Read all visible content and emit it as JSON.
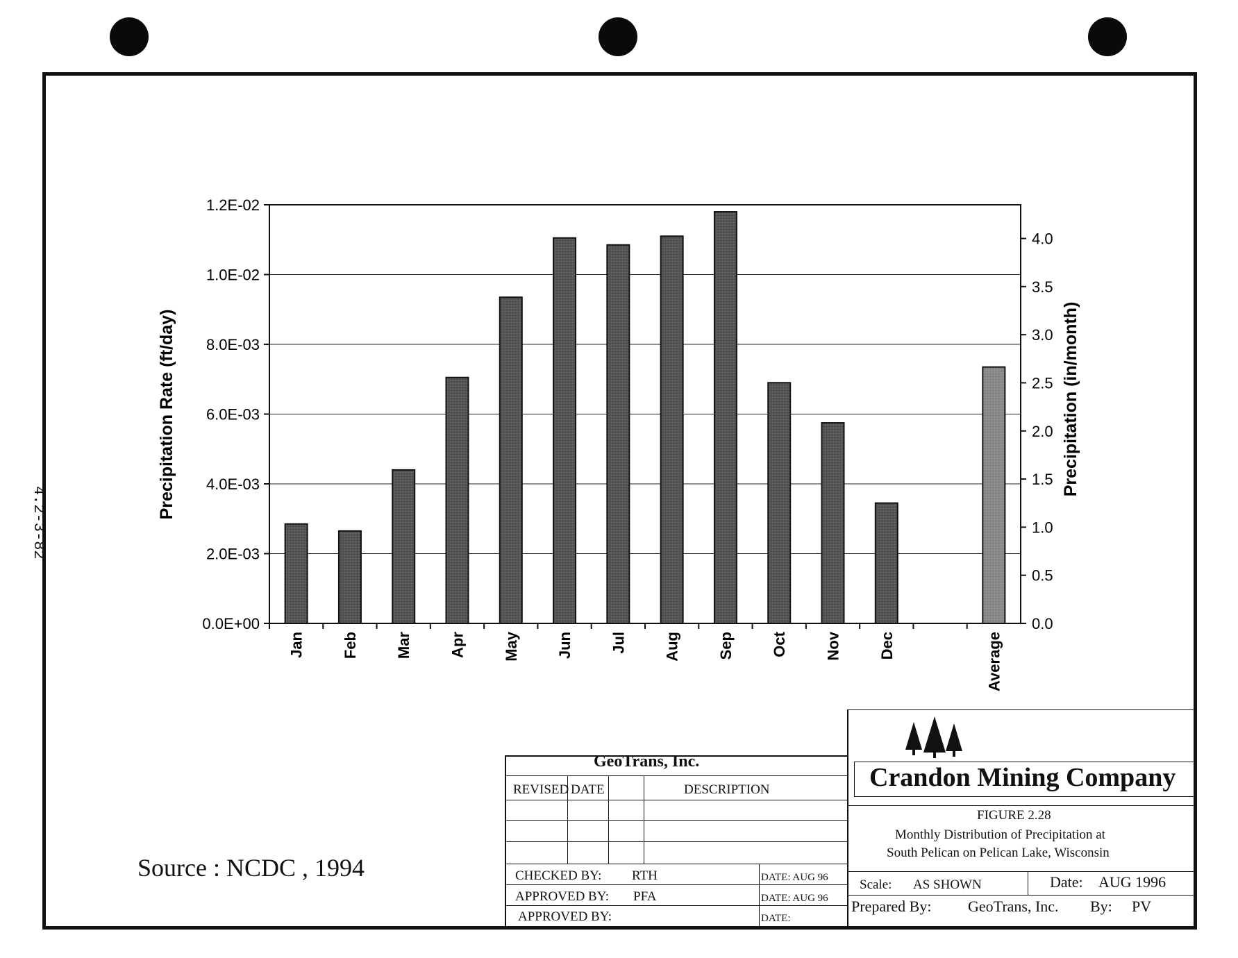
{
  "page_number": "4.2-3-82",
  "source_note": "Source : NCDC , 1994",
  "chart_data": {
    "type": "bar",
    "categories": [
      "Jan",
      "Feb",
      "Mar",
      "Apr",
      "May",
      "Jun",
      "Jul",
      "Aug",
      "Sep",
      "Oct",
      "Nov",
      "Dec",
      "",
      "Average"
    ],
    "values": [
      0.00285,
      0.00265,
      0.0044,
      0.00705,
      0.00935,
      0.01105,
      0.01085,
      0.0111,
      0.0118,
      0.0069,
      0.00575,
      0.00345,
      null,
      0.00735
    ],
    "ylabel": "Precipitation Rate (ft/day)",
    "y2label": "Precipitation (in/month)",
    "ylim": [
      0,
      0.012
    ],
    "yticks": [
      "0.0E+00",
      "2.0E-03",
      "4.0E-03",
      "6.0E-03",
      "8.0E-03",
      "1.0E-02",
      "1.2E-02"
    ],
    "y2ticks": [
      "0.0",
      "0.5",
      "1.0",
      "1.5",
      "2.0",
      "2.5",
      "3.0",
      "3.5",
      "4.0"
    ],
    "grid": true,
    "bar_color": "#555555",
    "average_bar_color": "#8a8a8a"
  },
  "title_block": {
    "company_left": "GeoTrans, Inc.",
    "col_revised": "REVISED",
    "col_date": "DATE",
    "col_description": "DESCRIPTION",
    "checked_by_label": "CHECKED BY:",
    "checked_by": "RTH",
    "checked_date": "DATE: AUG 96",
    "approved_by_label": "APPROVED BY:",
    "approved_by": "PFA",
    "approved_date": "DATE: AUG 96",
    "approved_by2_label": "APPROVED BY:",
    "approved_date2": "DATE:",
    "client": "Crandon Mining Company",
    "figure": "FIGURE 2.28",
    "figure_title_1": "Monthly Distribution of Precipitation at",
    "figure_title_2": "South Pelican on Pelican Lake, Wisconsin",
    "scale_label": "Scale:",
    "scale": "AS SHOWN",
    "date_label": "Date:",
    "date": "AUG 1996",
    "prepared_label": "Prepared By:",
    "prepared": "GeoTrans, Inc.",
    "by_label": "By:",
    "by": "PV"
  }
}
